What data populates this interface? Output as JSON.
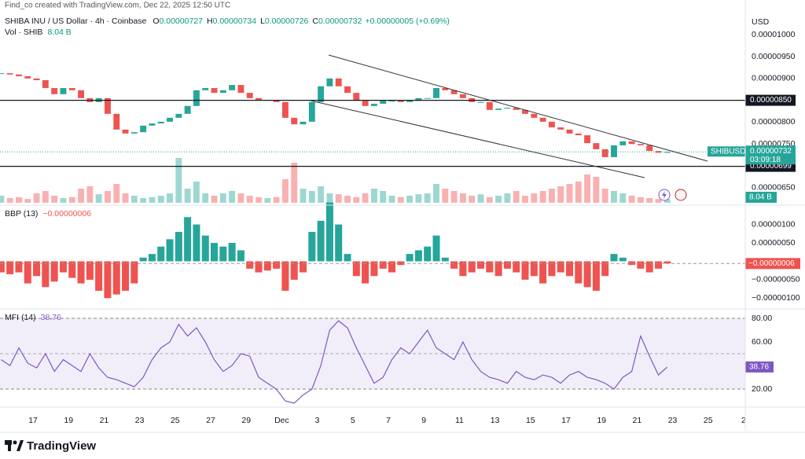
{
  "header": {
    "credit": "Find_co created with TradingView.com, Dec 22, 2025 12:50 UTC",
    "symbol": "SHIBA INU / US Dollar · 4h · Coinbase",
    "ohlc": [
      {
        "key": "O",
        "value": "0.00000727"
      },
      {
        "key": "H",
        "value": "0.00000734"
      },
      {
        "key": "L",
        "value": "0.00000726"
      },
      {
        "key": "C",
        "value": "0.00000732"
      }
    ],
    "change": "+0.00000005 (+0.69%)",
    "brand": "TradingView"
  },
  "chart_data": [
    {
      "type": "candlestick",
      "currency": "USD",
      "x": [
        15.2,
        15.7,
        16.2,
        16.7,
        17.2,
        17.7,
        18.2,
        18.7,
        19.2,
        19.7,
        20.2,
        20.7,
        21.2,
        21.7,
        22.2,
        22.7,
        23.2,
        23.7,
        24.2,
        24.7,
        25.2,
        25.7,
        26.2,
        26.7,
        27.2,
        27.7,
        28.2,
        28.7,
        29.2,
        29.7,
        30.2,
        30.7,
        31.2,
        31.7,
        32.2,
        32.7,
        33.2,
        33.7,
        34.2,
        34.7,
        35.2,
        35.7,
        36.2,
        36.7,
        37.2,
        37.7,
        38.2,
        38.7,
        39.2,
        39.7,
        40.2,
        40.7,
        41.2,
        41.7,
        42.2,
        42.7,
        43.2,
        43.7,
        44.2,
        44.7,
        45.2,
        45.7,
        46.2,
        46.7,
        47.2,
        47.7,
        48.2,
        48.7,
        49.2,
        49.7,
        50.2,
        50.7,
        51.2,
        51.7,
        52.2,
        52.7
      ],
      "xlim": [
        15.14,
        57.09
      ],
      "xticks": [
        17,
        19,
        21,
        23,
        25,
        27,
        29,
        {
          "value": 31,
          "label": "Dec"
        },
        {
          "value": 33,
          "label": "3"
        },
        {
          "value": 35,
          "label": "5"
        },
        {
          "value": 37,
          "label": "7"
        },
        {
          "value": 39,
          "label": "9"
        },
        {
          "value": 41,
          "label": "11"
        },
        {
          "value": 43,
          "label": "13"
        },
        {
          "value": 45,
          "label": "15"
        },
        {
          "value": 47,
          "label": "17"
        },
        {
          "value": 49,
          "label": "19"
        },
        {
          "value": 51,
          "label": "21"
        },
        {
          "value": 53,
          "label": "23"
        },
        {
          "value": 55,
          "label": "25"
        },
        {
          "value": 57,
          "label": "2"
        }
      ],
      "values": [
        9.12e-06,
        9.09e-06,
        9.05e-06,
        9e-06,
        8.96e-06,
        8.78e-06,
        8.64e-06,
        8.78e-06,
        8.73e-06,
        8.55e-06,
        8.46e-06,
        8.55e-06,
        8.19e-06,
        7.83e-06,
        7.74e-06,
        7.77e-06,
        7.92e-06,
        7.97e-06,
        8.01e-06,
        8.1e-06,
        8.19e-06,
        8.37e-06,
        8.73e-06,
        8.78e-06,
        8.67e-06,
        8.73e-06,
        8.85e-06,
        8.67e-06,
        8.55e-06,
        8.51e-06,
        8.51e-06,
        8.46e-06,
        8.1e-06,
        7.95e-06,
        8.01e-06,
        8.46e-06,
        8.82e-06,
        9e-06,
        8.82e-06,
        8.67e-06,
        8.49e-06,
        8.37e-06,
        8.42e-06,
        8.49e-06,
        8.49e-06,
        8.46e-06,
        8.49e-06,
        8.55e-06,
        8.55e-06,
        8.78e-06,
        8.73e-06,
        8.64e-06,
        8.55e-06,
        8.46e-06,
        8.46e-06,
        8.28e-06,
        8.31e-06,
        8.33e-06,
        8.28e-06,
        8.19e-06,
        8.1e-06,
        8.01e-06,
        7.88e-06,
        7.83e-06,
        7.74e-06,
        7.7e-06,
        7.52e-06,
        7.38e-06,
        7.2e-06,
        7.47e-06,
        7.56e-06,
        7.5e-06,
        7.47e-06,
        7.34e-06,
        7.3e-06,
        7.32e-06
      ],
      "last_label": "0.00000732",
      "symbol_tag": "SHIBUSD",
      "countdown": "03:09:18",
      "ylim": [
        6.21e-06,
        1.065e-05
      ],
      "yticks": [
        {
          "value": 1e-05,
          "label": "0.00001000"
        },
        {
          "value": 9.5e-06,
          "label": "0.00000950"
        },
        {
          "value": 9e-06,
          "label": "0.00000900"
        },
        {
          "value": 8e-06,
          "label": "0.00000800"
        },
        {
          "value": 7.5e-06,
          "label": "0.00000750"
        },
        {
          "value": 6.5e-06,
          "label": "0.00000650"
        }
      ],
      "levels": [
        {
          "value": 8.5e-06,
          "label": "0.00000850"
        },
        {
          "value": 6.99e-06,
          "label": "0.00000699"
        }
      ],
      "colors": {
        "up": "#26a69a",
        "down": "#ef5350"
      },
      "volume": {
        "name": "Vol · SHIB",
        "label": "8.04 B",
        "vlim": [
          0,
          100
        ],
        "values": [
          15,
          10,
          12,
          8,
          20,
          25,
          15,
          10,
          12,
          30,
          35,
          18,
          25,
          40,
          20,
          15,
          10,
          12,
          15,
          20,
          95,
          30,
          45,
          20,
          15,
          20,
          25,
          20,
          15,
          12,
          10,
          12,
          50,
          85,
          30,
          25,
          35,
          20,
          18,
          15,
          12,
          20,
          30,
          25,
          15,
          12,
          15,
          18,
          20,
          40,
          30,
          25,
          20,
          15,
          18,
          12,
          15,
          20,
          25,
          15,
          20,
          25,
          30,
          35,
          40,
          45,
          60,
          55,
          30,
          25,
          20,
          15,
          12,
          10,
          8,
          8.04
        ]
      }
    },
    {
      "type": "bar",
      "title": "BBP (13)",
      "last_label": "−0.00000006",
      "values": [
        -3e-07,
        -3.5e-07,
        -3e-07,
        -6e-07,
        -4e-07,
        -7e-07,
        -5.5e-07,
        -3e-07,
        -4.5e-07,
        -6e-07,
        -5e-07,
        -8e-07,
        -1e-06,
        -9e-07,
        -8e-07,
        -6e-07,
        1e-07,
        2e-07,
        4e-07,
        6e-07,
        8e-07,
        1.2e-06,
        1e-06,
        7e-07,
        5e-07,
        4e-07,
        5e-07,
        3e-07,
        -2e-07,
        -3e-07,
        -2.5e-07,
        -2e-07,
        -8e-07,
        -5e-07,
        -3e-07,
        8e-07,
        1.1e-06,
        1.6e-06,
        1e-06,
        2e-07,
        -4e-07,
        -6e-07,
        -4e-07,
        -2e-07,
        -3e-07,
        -1e-07,
        2e-07,
        3e-07,
        4e-07,
        7e-07,
        1e-07,
        -2e-07,
        -4e-07,
        -3e-07,
        -2e-07,
        -3e-07,
        -4e-07,
        -2e-07,
        -3e-07,
        -5e-07,
        -4e-07,
        -6e-07,
        -4e-07,
        -3e-07,
        -4e-07,
        -6e-07,
        -7e-07,
        -8e-07,
        -4e-07,
        2e-07,
        1e-07,
        -1e-07,
        -2e-07,
        -3e-07,
        -2e-07,
        -6e-08
      ],
      "ylim": [
        -1.27e-06,
        1.44e-06
      ],
      "yticks": [
        {
          "value": 1e-06,
          "label": "0.00000100"
        },
        {
          "value": 5e-07,
          "label": "0.00000050"
        },
        {
          "value": -5e-07,
          "label": "−0.00000050"
        },
        {
          "value": -1e-06,
          "label": "−0.00000100"
        }
      ],
      "colors": {
        "up": "#26a69a",
        "down": "#ef5350"
      }
    },
    {
      "type": "line",
      "title": "MFI (14)",
      "color": "#7e57c2",
      "values": [
        45,
        40,
        55,
        42,
        38,
        50,
        35,
        45,
        40,
        35,
        50,
        38,
        30,
        28,
        25,
        22,
        30,
        45,
        55,
        60,
        75,
        65,
        72,
        60,
        45,
        35,
        40,
        50,
        48,
        30,
        25,
        20,
        10,
        8,
        15,
        20,
        40,
        70,
        78,
        72,
        55,
        40,
        25,
        30,
        45,
        55,
        50,
        60,
        70,
        55,
        50,
        45,
        60,
        45,
        35,
        30,
        28,
        25,
        35,
        30,
        28,
        32,
        30,
        25,
        32,
        35,
        30,
        28,
        25,
        20,
        30,
        35,
        65,
        48,
        32,
        38.76
      ],
      "ylim": [
        6.7,
        86.7
      ],
      "yticks": [
        {
          "value": 80,
          "label": "80.00"
        },
        {
          "value": 60,
          "label": "60.00"
        },
        {
          "value": 20,
          "label": "20.00"
        }
      ],
      "band": [
        20,
        80
      ],
      "midline": 50
    }
  ]
}
